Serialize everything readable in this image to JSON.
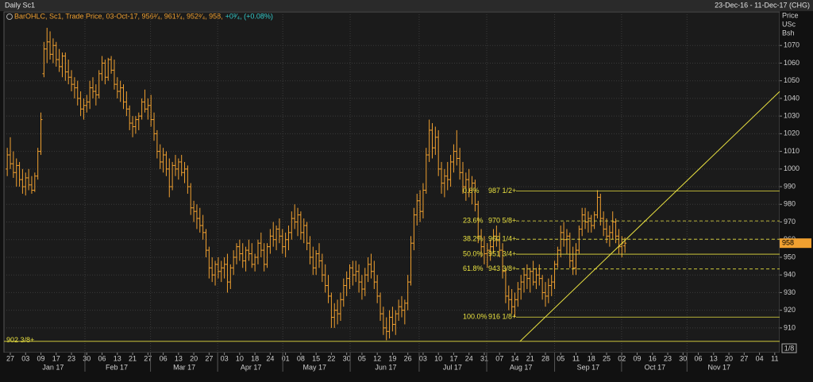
{
  "chart_data": {
    "type": "ohlc",
    "title": "Daily Sc1",
    "range_label": "23-Dec-16 - 11-Dec-17 (CHG)",
    "legend": "BarOHLC, Sc1, Trade Price, 03-Oct-17, 956²⁄₄, 961¹⁄₄, 952²⁄₄, 958,",
    "legend_change": "+0³⁄₄, (+0.08%)",
    "axis_title": [
      "Price",
      "USc",
      "Bsh"
    ],
    "scale_note": "1/8",
    "color": "#f0a030",
    "grid": true,
    "ylim": [
      896,
      1089
    ],
    "yticks": [
      910,
      920,
      930,
      940,
      950,
      960,
      970,
      980,
      990,
      1000,
      1010,
      1020,
      1030,
      1040,
      1050,
      1060,
      1070
    ],
    "xlim": [
      -1.08,
      252.6
    ],
    "xticks": [
      {
        "value": 1,
        "label": "27"
      },
      {
        "value": 6,
        "label": "03"
      },
      {
        "value": 11,
        "label": "09"
      },
      {
        "value": 16,
        "label": "17"
      },
      {
        "value": 21,
        "label": "23"
      },
      {
        "value": 26,
        "label": "30"
      },
      {
        "value": 31,
        "label": "06"
      },
      {
        "value": 36,
        "label": "13"
      },
      {
        "value": 41,
        "label": "21"
      },
      {
        "value": 46,
        "label": "27"
      },
      {
        "value": 51,
        "label": "06"
      },
      {
        "value": 56,
        "label": "13"
      },
      {
        "value": 61,
        "label": "20"
      },
      {
        "value": 66,
        "label": "27"
      },
      {
        "value": 71,
        "label": "03"
      },
      {
        "value": 76,
        "label": "10"
      },
      {
        "value": 81,
        "label": "18"
      },
      {
        "value": 86,
        "label": "24"
      },
      {
        "value": 91,
        "label": "01"
      },
      {
        "value": 96,
        "label": "08"
      },
      {
        "value": 101,
        "label": "15"
      },
      {
        "value": 106,
        "label": "22"
      },
      {
        "value": 111,
        "label": "30"
      },
      {
        "value": 116,
        "label": "05"
      },
      {
        "value": 121,
        "label": "12"
      },
      {
        "value": 126,
        "label": "19"
      },
      {
        "value": 131,
        "label": "26"
      },
      {
        "value": 136,
        "label": "03"
      },
      {
        "value": 141,
        "label": "10"
      },
      {
        "value": 146,
        "label": "17"
      },
      {
        "value": 151,
        "label": "24"
      },
      {
        "value": 156,
        "label": "31"
      },
      {
        "value": 161,
        "label": "07"
      },
      {
        "value": 166,
        "label": "14"
      },
      {
        "value": 171,
        "label": "21"
      },
      {
        "value": 176,
        "label": "28"
      },
      {
        "value": 181,
        "label": "05"
      },
      {
        "value": 186,
        "label": "11"
      },
      {
        "value": 191,
        "label": "18"
      },
      {
        "value": 196,
        "label": "25"
      },
      {
        "value": 201,
        "label": "02"
      },
      {
        "value": 206,
        "label": "09"
      },
      {
        "value": 211,
        "label": "16"
      },
      {
        "value": 216,
        "label": "23"
      },
      {
        "value": 221,
        "label": "30"
      },
      {
        "value": 226,
        "label": "06"
      },
      {
        "value": 231,
        "label": "13"
      },
      {
        "value": 236,
        "label": "20"
      },
      {
        "value": 241,
        "label": "27"
      },
      {
        "value": 246,
        "label": "04"
      },
      {
        "value": 251,
        "label": "11"
      }
    ],
    "months": [
      {
        "value": 15,
        "label": "Jan 17"
      },
      {
        "value": 35.8,
        "label": "Feb 17"
      },
      {
        "value": 57.9,
        "label": "Mar 17"
      },
      {
        "value": 79.7,
        "label": "Apr 17"
      },
      {
        "value": 100.5,
        "label": "May 17"
      },
      {
        "value": 123.8,
        "label": "Jun 17"
      },
      {
        "value": 145.6,
        "label": "Jul 17"
      },
      {
        "value": 168,
        "label": "Aug 17"
      },
      {
        "value": 190,
        "label": "Sep 17"
      },
      {
        "value": 211.8,
        "label": "Oct 17"
      },
      {
        "value": 232.8,
        "label": "Nov 17"
      }
    ],
    "ohlc": [
      [
        1000,
        1012,
        996,
        1008
      ],
      [
        1008,
        1018,
        1000,
        1003
      ],
      [
        1003,
        1010,
        995,
        998
      ],
      [
        998,
        1006,
        990,
        1002
      ],
      [
        1002,
        1004,
        990,
        994
      ],
      [
        994,
        1000,
        986,
        990
      ],
      [
        990,
        998,
        985,
        995
      ],
      [
        995,
        1000,
        988,
        991
      ],
      [
        991,
        996,
        986,
        988
      ],
      [
        988,
        998,
        987,
        996
      ],
      [
        996,
        1012,
        994,
        1010
      ],
      [
        1010,
        1032,
        1008,
        1028
      ],
      [
        1054,
        1072,
        1052,
        1068
      ],
      [
        1068,
        1080,
        1060,
        1072
      ],
      [
        1072,
        1078,
        1062,
        1065
      ],
      [
        1065,
        1074,
        1060,
        1070
      ],
      [
        1070,
        1072,
        1058,
        1062
      ],
      [
        1062,
        1068,
        1055,
        1058
      ],
      [
        1058,
        1066,
        1052,
        1064
      ],
      [
        1064,
        1066,
        1050,
        1055
      ],
      [
        1055,
        1062,
        1048,
        1052
      ],
      [
        1052,
        1056,
        1044,
        1048
      ],
      [
        1048,
        1052,
        1040,
        1046
      ],
      [
        1046,
        1050,
        1036,
        1040
      ],
      [
        1040,
        1044,
        1030,
        1034
      ],
      [
        1034,
        1040,
        1028,
        1036
      ],
      [
        1036,
        1042,
        1032,
        1038
      ],
      [
        1038,
        1050,
        1034,
        1046
      ],
      [
        1046,
        1052,
        1040,
        1044
      ],
      [
        1044,
        1048,
        1036,
        1042
      ],
      [
        1042,
        1056,
        1040,
        1054
      ],
      [
        1054,
        1064,
        1050,
        1060
      ],
      [
        1060,
        1062,
        1048,
        1052
      ],
      [
        1052,
        1063,
        1050,
        1062
      ],
      [
        1062,
        1064,
        1054,
        1056
      ],
      [
        1056,
        1062,
        1045,
        1048
      ],
      [
        1048,
        1052,
        1040,
        1044
      ],
      [
        1044,
        1050,
        1038,
        1046
      ],
      [
        1046,
        1048,
        1034,
        1038
      ],
      [
        1038,
        1044,
        1030,
        1034
      ],
      [
        1034,
        1036,
        1022,
        1026
      ],
      [
        1026,
        1030,
        1018,
        1024
      ],
      [
        1024,
        1030,
        1020,
        1028
      ],
      [
        1028,
        1032,
        1022,
        1030
      ],
      [
        1030,
        1040,
        1028,
        1038
      ],
      [
        1038,
        1045,
        1032,
        1034
      ],
      [
        1034,
        1040,
        1028,
        1036
      ],
      [
        1036,
        1042,
        1024,
        1028
      ],
      [
        1028,
        1032,
        1016,
        1020
      ],
      [
        1020,
        1022,
        1006,
        1010
      ],
      [
        1010,
        1014,
        1000,
        1004
      ],
      [
        1004,
        1012,
        998,
        1008
      ],
      [
        1008,
        1010,
        996,
        1000
      ],
      [
        1000,
        1006,
        984,
        990
      ],
      [
        990,
        1004,
        988,
        1002
      ],
      [
        1002,
        1008,
        996,
        1000
      ],
      [
        1000,
        1006,
        994,
        1004
      ],
      [
        1004,
        1008,
        996,
        998
      ],
      [
        998,
        1004,
        992,
        1000
      ],
      [
        1000,
        1002,
        986,
        990
      ],
      [
        990,
        992,
        974,
        978
      ],
      [
        978,
        982,
        970,
        976
      ],
      [
        976,
        980,
        966,
        972
      ],
      [
        972,
        978,
        964,
        968
      ],
      [
        968,
        974,
        960,
        964
      ],
      [
        964,
        966,
        950,
        954
      ],
      [
        954,
        956,
        938,
        944
      ],
      [
        944,
        950,
        936,
        940
      ],
      [
        940,
        948,
        934,
        946
      ],
      [
        946,
        950,
        938,
        942
      ],
      [
        942,
        948,
        936,
        944
      ],
      [
        944,
        950,
        938,
        946
      ],
      [
        946,
        952,
        930,
        936
      ],
      [
        936,
        946,
        932,
        944
      ],
      [
        944,
        954,
        940,
        950
      ],
      [
        950,
        958,
        946,
        956
      ],
      [
        956,
        960,
        948,
        952
      ],
      [
        952,
        958,
        944,
        948
      ],
      [
        948,
        956,
        942,
        954
      ],
      [
        954,
        960,
        948,
        952
      ],
      [
        952,
        958,
        944,
        946
      ],
      [
        946,
        952,
        942,
        950
      ],
      [
        950,
        960,
        946,
        958
      ],
      [
        958,
        964,
        950,
        954
      ],
      [
        954,
        958,
        942,
        946
      ],
      [
        946,
        958,
        944,
        956
      ],
      [
        956,
        966,
        952,
        962
      ],
      [
        962,
        970,
        956,
        960
      ],
      [
        960,
        968,
        954,
        966
      ],
      [
        966,
        972,
        958,
        962
      ],
      [
        962,
        966,
        952,
        956
      ],
      [
        956,
        964,
        950,
        960
      ],
      [
        960,
        968,
        954,
        964
      ],
      [
        964,
        976,
        960,
        972
      ],
      [
        972,
        980,
        966,
        970
      ],
      [
        970,
        978,
        962,
        974
      ],
      [
        974,
        976,
        960,
        964
      ],
      [
        964,
        972,
        958,
        968
      ],
      [
        968,
        970,
        954,
        958
      ],
      [
        958,
        962,
        946,
        950
      ],
      [
        950,
        956,
        940,
        944
      ],
      [
        944,
        954,
        940,
        952
      ],
      [
        952,
        958,
        944,
        948
      ],
      [
        948,
        952,
        936,
        940
      ],
      [
        940,
        946,
        930,
        934
      ],
      [
        934,
        940,
        924,
        928
      ],
      [
        928,
        930,
        910,
        916
      ],
      [
        916,
        924,
        910,
        920
      ],
      [
        920,
        926,
        912,
        918
      ],
      [
        918,
        930,
        914,
        926
      ],
      [
        926,
        938,
        922,
        934
      ],
      [
        934,
        942,
        928,
        938
      ],
      [
        938,
        946,
        932,
        944
      ],
      [
        944,
        948,
        934,
        940
      ],
      [
        940,
        948,
        936,
        942
      ],
      [
        942,
        946,
        930,
        936
      ],
      [
        936,
        940,
        926,
        932
      ],
      [
        932,
        944,
        928,
        940
      ],
      [
        940,
        950,
        936,
        946
      ],
      [
        946,
        952,
        938,
        942
      ],
      [
        942,
        948,
        932,
        936
      ],
      [
        936,
        940,
        924,
        928
      ],
      [
        928,
        930,
        914,
        918
      ],
      [
        918,
        922,
        906,
        910
      ],
      [
        910,
        916,
        903,
        908
      ],
      [
        908,
        920,
        904,
        916
      ],
      [
        916,
        922,
        908,
        912
      ],
      [
        912,
        920,
        906,
        918
      ],
      [
        918,
        926,
        914,
        922
      ],
      [
        922,
        928,
        916,
        920
      ],
      [
        920,
        926,
        912,
        924
      ],
      [
        924,
        940,
        920,
        936
      ],
      [
        936,
        962,
        934,
        958
      ],
      [
        958,
        978,
        954,
        974
      ],
      [
        974,
        986,
        968,
        982
      ],
      [
        982,
        988,
        970,
        976
      ],
      [
        976,
        992,
        972,
        988
      ],
      [
        988,
        1012,
        986,
        1008
      ],
      [
        1008,
        1028,
        1004,
        1022
      ],
      [
        1022,
        1026,
        1006,
        1012
      ],
      [
        1012,
        1024,
        1008,
        1018
      ],
      [
        1018,
        1022,
        996,
        1000
      ],
      [
        1000,
        1004,
        986,
        992
      ],
      [
        992,
        1000,
        984,
        996
      ],
      [
        996,
        1004,
        988,
        994
      ],
      [
        994,
        1008,
        990,
        1004
      ],
      [
        1004,
        1014,
        998,
        1010
      ],
      [
        1010,
        1022,
        1002,
        1006
      ],
      [
        1006,
        1012,
        994,
        998
      ],
      [
        998,
        1004,
        986,
        990
      ],
      [
        990,
        998,
        982,
        994
      ],
      [
        994,
        1000,
        984,
        988
      ],
      [
        988,
        996,
        980,
        992
      ],
      [
        992,
        994,
        976,
        980
      ],
      [
        980,
        982,
        958,
        962
      ],
      [
        962,
        966,
        950,
        956
      ],
      [
        956,
        962,
        946,
        952
      ],
      [
        952,
        958,
        944,
        954
      ],
      [
        954,
        960,
        948,
        956
      ],
      [
        956,
        966,
        952,
        962
      ],
      [
        962,
        968,
        956,
        960
      ],
      [
        960,
        964,
        950,
        954
      ],
      [
        954,
        958,
        938,
        942
      ],
      [
        942,
        944,
        924,
        928
      ],
      [
        928,
        934,
        920,
        926
      ],
      [
        926,
        932,
        918,
        922
      ],
      [
        922,
        930,
        916,
        926
      ],
      [
        926,
        936,
        922,
        932
      ],
      [
        932,
        940,
        926,
        936
      ],
      [
        936,
        944,
        930,
        940
      ],
      [
        940,
        946,
        932,
        938
      ],
      [
        938,
        944,
        930,
        942
      ],
      [
        942,
        948,
        934,
        936
      ],
      [
        936,
        944,
        932,
        940
      ],
      [
        940,
        946,
        934,
        938
      ],
      [
        938,
        940,
        926,
        930
      ],
      [
        930,
        936,
        922,
        928
      ],
      [
        928,
        938,
        924,
        934
      ],
      [
        934,
        940,
        928,
        936
      ],
      [
        936,
        948,
        932,
        946
      ],
      [
        946,
        956,
        944,
        954
      ],
      [
        954,
        968,
        950,
        964
      ],
      [
        964,
        970,
        956,
        960
      ],
      [
        960,
        966,
        952,
        962
      ],
      [
        962,
        964,
        944,
        948
      ],
      [
        948,
        956,
        940,
        944
      ],
      [
        944,
        958,
        940,
        954
      ],
      [
        954,
        968,
        952,
        966
      ],
      [
        966,
        978,
        962,
        974
      ],
      [
        974,
        978,
        966,
        970
      ],
      [
        970,
        976,
        964,
        972
      ],
      [
        972,
        974,
        964,
        968
      ],
      [
        968,
        976,
        966,
        974
      ],
      [
        974,
        988,
        972,
        984
      ],
      [
        984,
        986,
        968,
        972
      ],
      [
        972,
        976,
        962,
        966
      ],
      [
        966,
        972,
        958,
        962
      ],
      [
        962,
        968,
        956,
        964
      ],
      [
        964,
        976,
        960,
        970
      ],
      [
        970,
        972,
        958,
        962
      ],
      [
        962,
        966,
        952,
        956
      ],
      [
        956,
        962,
        950,
        958
      ],
      [
        956.5,
        961.25,
        952.5,
        958
      ]
    ],
    "fib": [
      {
        "name": "0.0%",
        "value": 987.5,
        "label": "987 1/2+",
        "dashed": false
      },
      {
        "name": "23.6%",
        "value": 970.625,
        "label": "970 5/8+",
        "dashed": true
      },
      {
        "name": "38.2%",
        "value": 960.25,
        "label": "960 1/4+",
        "dashed": true
      },
      {
        "name": "50.0%",
        "value": 951.75,
        "label": "951 3/4+",
        "dashed": false
      },
      {
        "name": "61.8%",
        "value": 943.375,
        "label": "943 3/8+",
        "dashed": true
      },
      {
        "name": "100.0%",
        "value": 916.125,
        "label": "916 1/8+",
        "dashed": false
      }
    ],
    "fib_color": "#e8e040",
    "support": {
      "value": 902.375,
      "label": "902 3/8+"
    },
    "trendline": {
      "points": [
        [
          167.7,
          902.4
        ],
        [
          252.6,
          1043.9
        ]
      ]
    }
  }
}
